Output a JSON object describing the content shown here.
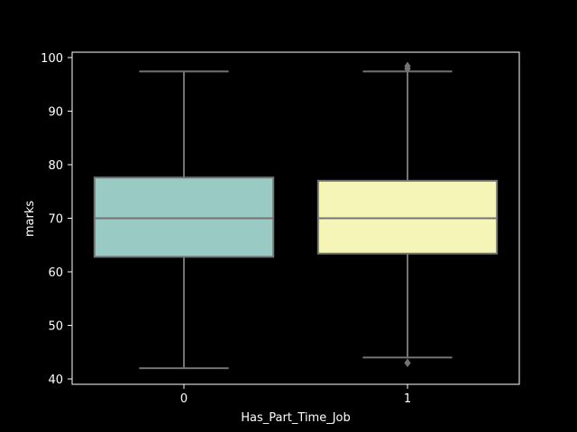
{
  "chart_data": {
    "type": "box",
    "xlabel": "Has_Part_Time_Job",
    "ylabel": "marks",
    "categories": [
      "0",
      "1"
    ],
    "ylim": [
      39,
      101
    ],
    "yticks": [
      40,
      50,
      60,
      70,
      80,
      90,
      100
    ],
    "grid": false,
    "background": "#000000",
    "box_colors": [
      "#99cbc4",
      "#f5f5b8"
    ],
    "line_color": "#737373",
    "boxes": [
      {
        "category": "0",
        "whisker_low": 42,
        "q1": 62.8,
        "median": 70,
        "q3": 77.6,
        "whisker_high": 97.4,
        "outliers": []
      },
      {
        "category": "1",
        "whisker_low": 44,
        "q1": 63.4,
        "median": 70,
        "q3": 77,
        "whisker_high": 97.4,
        "outliers": [
          43,
          97.9,
          98.4
        ]
      }
    ]
  }
}
